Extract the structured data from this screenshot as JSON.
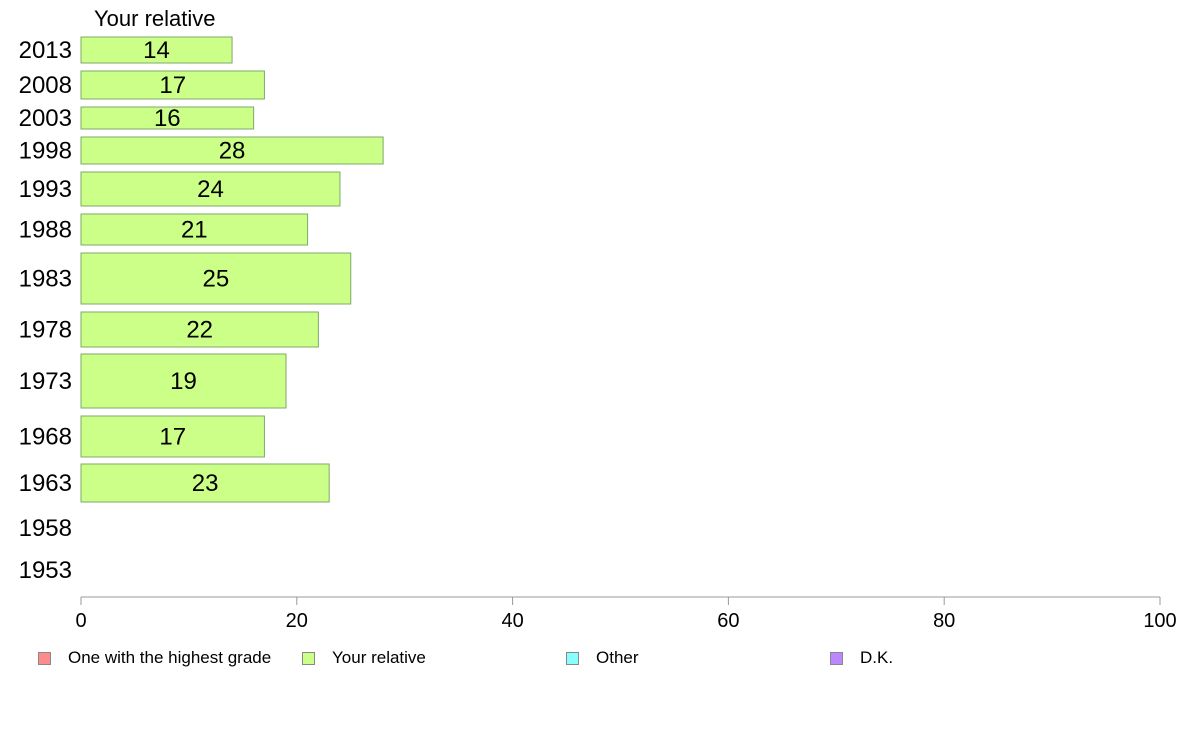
{
  "chart_data": {
    "type": "bar",
    "orientation": "horizontal",
    "title": "Your relative",
    "categories": [
      "2013",
      "2008",
      "2003",
      "1998",
      "1993",
      "1988",
      "1983",
      "1978",
      "1973",
      "1968",
      "1963",
      "1958",
      "1953"
    ],
    "series": [
      {
        "name": "Your relative",
        "values": [
          14,
          17,
          16,
          28,
          24,
          21,
          25,
          22,
          19,
          17,
          23,
          null,
          null
        ],
        "labels": [
          "14",
          "17",
          "16",
          "28",
          "24",
          "21",
          "25",
          "22",
          "19",
          "17",
          "23",
          "",
          ""
        ],
        "color": "#ccff88"
      }
    ],
    "xlim": [
      0,
      100
    ],
    "xticks": [
      0,
      20,
      40,
      60,
      80,
      100
    ],
    "xlabel": "",
    "ylabel": "",
    "grid": false,
    "legend_position": "bottom",
    "legend": [
      {
        "name": "One with the highest grade",
        "color": "#ff8c8c"
      },
      {
        "name": "Your relative",
        "color": "#ccff88"
      },
      {
        "name": "Other",
        "color": "#88ffff"
      },
      {
        "name": "D.K.",
        "color": "#bb88ff"
      }
    ]
  }
}
